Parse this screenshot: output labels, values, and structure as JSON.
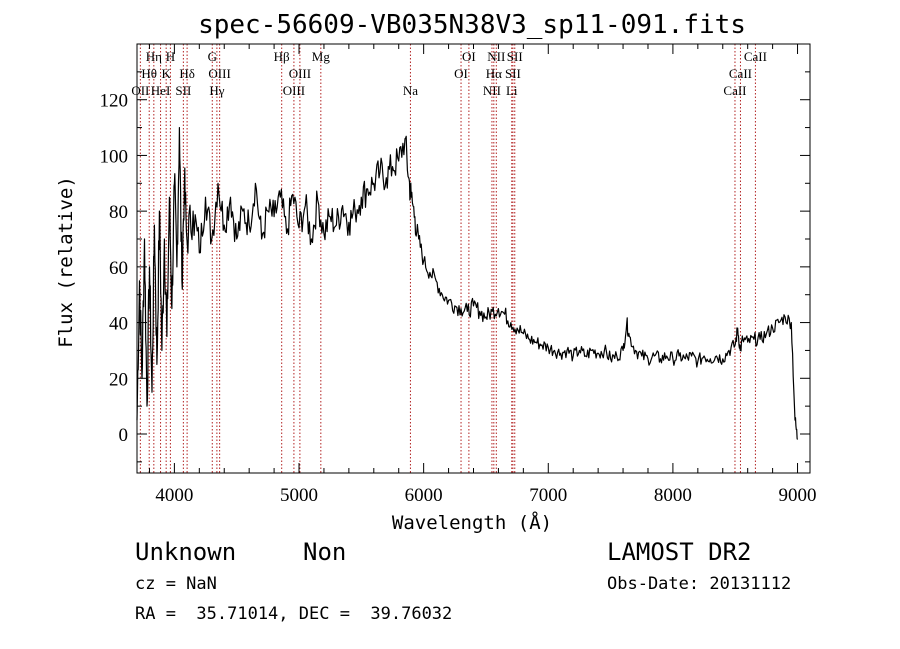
{
  "chart_data": {
    "type": "line",
    "title": "spec-56609-VB035N38V3_sp11-091.fits",
    "xlabel": "Wavelength (Å)",
    "ylabel": "Flux (relative)",
    "xlim": [
      3700,
      9100
    ],
    "ylim": [
      -14,
      140
    ],
    "x_ticks": [
      4000,
      5000,
      6000,
      7000,
      8000,
      9000
    ],
    "y_ticks": [
      0,
      20,
      40,
      60,
      80,
      100,
      120
    ],
    "series": [
      {
        "x": [
          3700,
          3720,
          3740,
          3760,
          3780,
          3800,
          3820,
          3840,
          3860,
          3880,
          3900,
          3920,
          3940,
          3960,
          3980,
          4000,
          4020,
          4040,
          4060,
          4080,
          4100,
          4150,
          4200,
          4250,
          4300,
          4350,
          4400,
          4450,
          4500,
          4550,
          4600,
          4650,
          4700,
          4750,
          4800,
          4850,
          4900,
          4950,
          5000,
          5050,
          5100,
          5150,
          5200,
          5250,
          5300,
          5350,
          5400,
          5450,
          5500,
          5550,
          5600,
          5650,
          5700,
          5750,
          5800,
          5850,
          5880,
          5900,
          5930,
          5960,
          6000,
          6050,
          6100,
          6150,
          6200,
          6250,
          6300,
          6350,
          6400,
          6450,
          6500,
          6550,
          6600,
          6650,
          6700,
          6750,
          6800,
          6850,
          6900,
          6950,
          7000,
          7050,
          7100,
          7150,
          7200,
          7250,
          7300,
          7350,
          7400,
          7450,
          7500,
          7550,
          7600,
          7630,
          7650,
          7700,
          7750,
          7800,
          7850,
          7900,
          7950,
          8000,
          8050,
          8100,
          8150,
          8200,
          8250,
          8300,
          8350,
          8400,
          8450,
          8500,
          8520,
          8540,
          8560,
          8600,
          8650,
          8700,
          8750,
          8800,
          8850,
          8900,
          8950,
          8980,
          9000
        ],
        "y": [
          5,
          55,
          20,
          70,
          10,
          60,
          15,
          75,
          25,
          80,
          30,
          70,
          35,
          85,
          45,
          90,
          60,
          110,
          55,
          90,
          70,
          80,
          65,
          85,
          70,
          90,
          75,
          85,
          70,
          80,
          75,
          90,
          70,
          80,
          78,
          85,
          72,
          86,
          74,
          82,
          70,
          84,
          72,
          78,
          75,
          82,
          76,
          80,
          85,
          88,
          90,
          94,
          92,
          96,
          98,
          106,
          92,
          85,
          78,
          70,
          62,
          58,
          55,
          50,
          48,
          46,
          45,
          44,
          46,
          44,
          42,
          44,
          45,
          43,
          40,
          38,
          36,
          34,
          33,
          32,
          31,
          30,
          29,
          30,
          28,
          30,
          28,
          30,
          29,
          30,
          27,
          28,
          30,
          40,
          35,
          30,
          28,
          27,
          28,
          27,
          28,
          27,
          28,
          27,
          28,
          26,
          28,
          27,
          28,
          27,
          30,
          32,
          38,
          30,
          34,
          33,
          34,
          34,
          36,
          38,
          40,
          42,
          40,
          5,
          -2
        ]
      }
    ],
    "lines": [
      {
        "label": "OII",
        "wavelength": 3727,
        "row": 2
      },
      {
        "label": "Hθ",
        "wavelength": 3798,
        "row": 1
      },
      {
        "label": "Hη",
        "wavelength": 3835,
        "row": 0
      },
      {
        "label": "HeI",
        "wavelength": 3889,
        "row": 2
      },
      {
        "label": "K",
        "wavelength": 3934,
        "row": 1
      },
      {
        "label": "H",
        "wavelength": 3968,
        "row": 0
      },
      {
        "label": "SII",
        "wavelength": 4072,
        "row": 2
      },
      {
        "label": "Hδ",
        "wavelength": 4102,
        "row": 1
      },
      {
        "label": "G",
        "wavelength": 4304,
        "row": 0
      },
      {
        "label": "Hγ",
        "wavelength": 4341,
        "row": 2
      },
      {
        "label": "OIII",
        "wavelength": 4363,
        "row": 1
      },
      {
        "label": "Hβ",
        "wavelength": 4861,
        "row": 0
      },
      {
        "label": "OIII",
        "wavelength": 4959,
        "row": 2
      },
      {
        "label": "OIII",
        "wavelength": 5007,
        "row": 1
      },
      {
        "label": "Mg",
        "wavelength": 5175,
        "row": 0
      },
      {
        "label": "Na",
        "wavelength": 5894,
        "row": 2
      },
      {
        "label": "OI",
        "wavelength": 6300,
        "row": 1
      },
      {
        "label": "OI",
        "wavelength": 6363,
        "row": 0
      },
      {
        "label": "NII",
        "wavelength": 6548,
        "row": 2
      },
      {
        "label": "Hα",
        "wavelength": 6563,
        "row": 1
      },
      {
        "label": "NII",
        "wavelength": 6583,
        "row": 0
      },
      {
        "label": "Li",
        "wavelength": 6707,
        "row": 2
      },
      {
        "label": "SII",
        "wavelength": 6716,
        "row": 1
      },
      {
        "label": "SII",
        "wavelength": 6731,
        "row": 0
      },
      {
        "label": "CaII",
        "wavelength": 8498,
        "row": 2
      },
      {
        "label": "CaII",
        "wavelength": 8542,
        "row": 1
      },
      {
        "label": "CaII",
        "wavelength": 8662,
        "row": 0
      }
    ],
    "line_color": "#b22222"
  },
  "info": {
    "class": "Unknown",
    "subclass": "Non",
    "survey": "LAMOST DR2",
    "cz": "cz = NaN",
    "obs_date": "Obs-Date: 20131112",
    "coords": "RA =  35.71014, DEC =  39.76032"
  }
}
